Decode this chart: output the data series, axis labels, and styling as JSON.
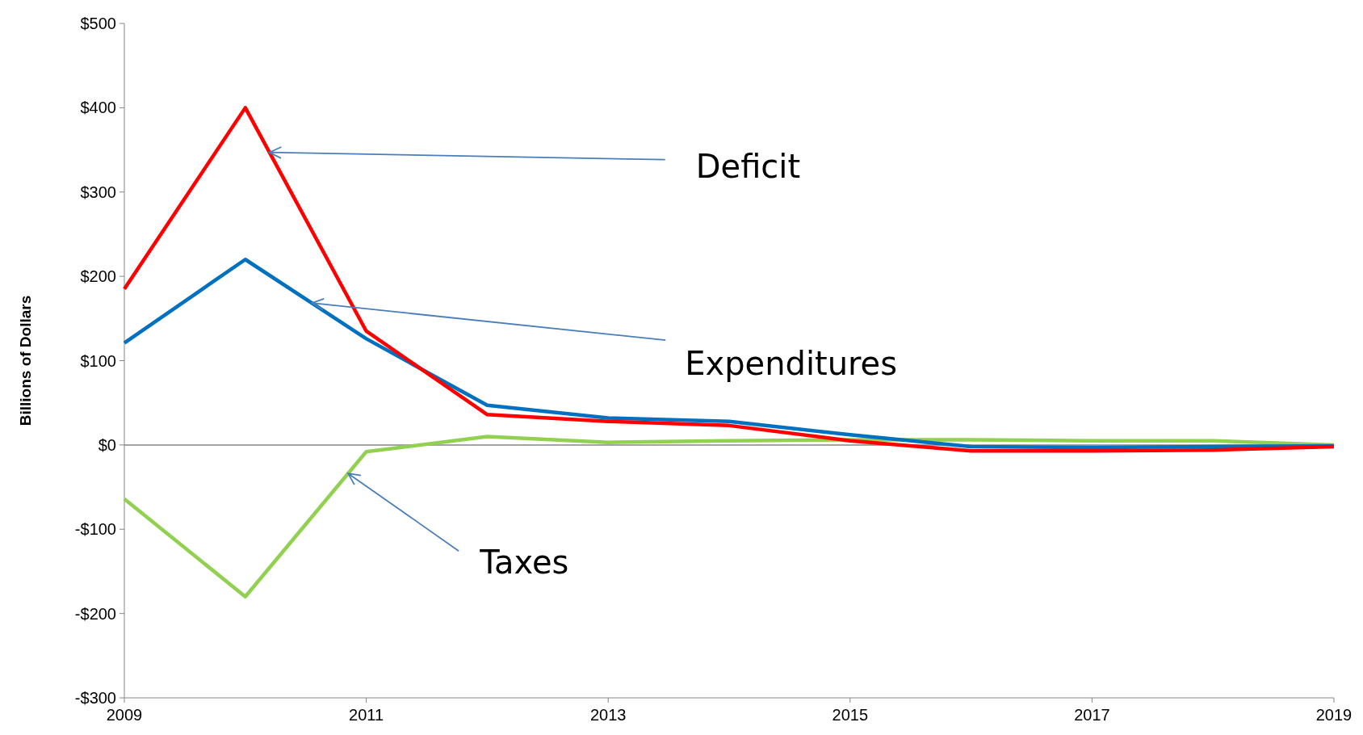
{
  "chart_data": {
    "type": "line",
    "ylabel": "Billions of Dollars",
    "x": [
      2009,
      2010,
      2011,
      2012,
      2013,
      2014,
      2015,
      2016,
      2017,
      2018,
      2019
    ],
    "series": [
      {
        "color": "#92d050",
        "values": [
          -64,
          -180,
          -8,
          10,
          3,
          5,
          6,
          6,
          5,
          5,
          0
        ]
      },
      {
        "color": "#0070c0",
        "values": [
          121,
          220,
          126,
          47,
          32,
          28,
          12,
          -2,
          -3,
          -2,
          -1
        ]
      },
      {
        "color": "#ff0000",
        "values": [
          185,
          400,
          135,
          36,
          28,
          23,
          5,
          -7,
          -7,
          -6,
          -2
        ]
      }
    ],
    "xlim": [
      2009,
      2019
    ],
    "xticks": [
      2009,
      2011,
      2013,
      2015,
      2017,
      2019
    ],
    "ylim": [
      -300,
      500
    ],
    "yticks": [
      {
        "value": -300,
        "label": "-$300"
      },
      {
        "value": -200,
        "label": "-$200"
      },
      {
        "value": -100,
        "label": "-$100"
      },
      {
        "value": 0,
        "label": "$0"
      },
      {
        "value": 100,
        "label": "$100"
      },
      {
        "value": 200,
        "label": "$200"
      },
      {
        "value": 300,
        "label": "$300"
      },
      {
        "value": 400,
        "label": "$400"
      },
      {
        "value": 500,
        "label": "$500"
      }
    ],
    "ref_lines": [
      {
        "axis": "y",
        "value": 0,
        "color": "#868686"
      }
    ],
    "grid": false,
    "marker": "none",
    "line_style": "solid",
    "annotations": [
      {
        "text": "Deficit",
        "x": 2010.2,
        "y": 347
      },
      {
        "text": "Expenditures",
        "x": 2010.55,
        "y": 168.3
      },
      {
        "text": "Taxes",
        "x": 2010.85,
        "y": -33.8
      }
    ]
  }
}
